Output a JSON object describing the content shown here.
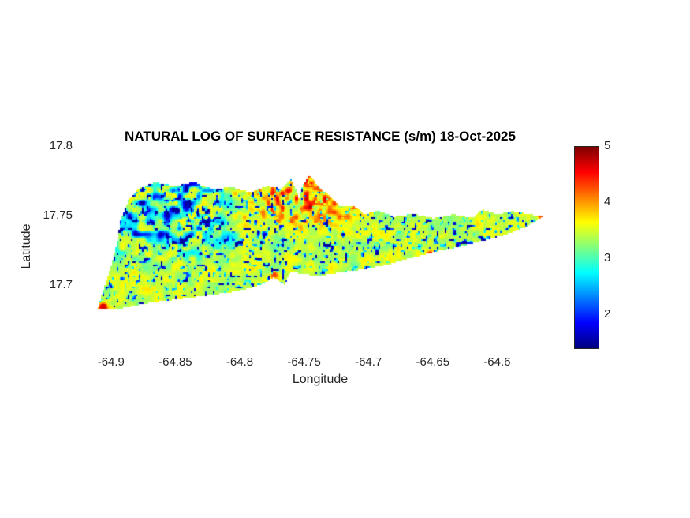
{
  "figure": {
    "background": "#ffffff"
  },
  "chart_data": {
    "type": "heatmap",
    "title": "NATURAL LOG OF SURFACE RESISTANCE (s/m) 18-Oct-2025",
    "xlabel": "Longitude",
    "ylabel": "Latitude",
    "xlim": [
      -64.925,
      -64.55
    ],
    "ylim": [
      17.655,
      17.8
    ],
    "x_tick_values": [
      -64.9,
      -64.85,
      -64.8,
      -64.75,
      -64.7,
      -64.65,
      -64.6
    ],
    "x_tick_labels": [
      "-64.9",
      "-64.85",
      "-64.8",
      "-64.75",
      "-64.7",
      "-64.65",
      "-64.6"
    ],
    "y_tick_values": [
      17.8,
      17.75,
      17.7
    ],
    "y_tick_labels": [
      "17.8",
      "17.75",
      "17.7"
    ],
    "grid": false,
    "colorbar": {
      "colormap": "jet",
      "range": [
        1.4,
        5.0
      ],
      "tick_values": [
        2,
        3,
        4,
        5
      ],
      "tick_labels": [
        "2",
        "3",
        "4",
        "5"
      ],
      "position": "right"
    },
    "island_outline_lonlat": [
      [
        -64.9097,
        17.682
      ],
      [
        -64.906,
        17.696
      ],
      [
        -64.899,
        17.715
      ],
      [
        -64.8945,
        17.732
      ],
      [
        -64.8925,
        17.7455
      ],
      [
        -64.8865,
        17.76
      ],
      [
        -64.8785,
        17.769
      ],
      [
        -64.866,
        17.7735
      ],
      [
        -64.85,
        17.771
      ],
      [
        -64.835,
        17.7735
      ],
      [
        -64.821,
        17.769
      ],
      [
        -64.8055,
        17.77
      ],
      [
        -64.7915,
        17.7665
      ],
      [
        -64.778,
        17.7712
      ],
      [
        -64.767,
        17.7688
      ],
      [
        -64.7596,
        17.7758
      ],
      [
        -64.756,
        17.769
      ],
      [
        -64.754,
        17.7618
      ],
      [
        -64.7516,
        17.77
      ],
      [
        -64.7455,
        17.779
      ],
      [
        -64.738,
        17.77
      ],
      [
        -64.73,
        17.764
      ],
      [
        -64.7215,
        17.756
      ],
      [
        -64.7105,
        17.7565
      ],
      [
        -64.703,
        17.7505
      ],
      [
        -64.692,
        17.753
      ],
      [
        -64.68,
        17.749
      ],
      [
        -64.6645,
        17.7508
      ],
      [
        -64.649,
        17.7478
      ],
      [
        -64.634,
        17.7505
      ],
      [
        -64.6185,
        17.7482
      ],
      [
        -64.611,
        17.754
      ],
      [
        -64.6,
        17.7505
      ],
      [
        -64.588,
        17.7528
      ],
      [
        -64.5745,
        17.7505
      ],
      [
        -64.5635,
        17.7495
      ],
      [
        -64.577,
        17.7415
      ],
      [
        -64.594,
        17.7358
      ],
      [
        -64.6125,
        17.7312
      ],
      [
        -64.631,
        17.7268
      ],
      [
        -64.649,
        17.7232
      ],
      [
        -64.6675,
        17.7188
      ],
      [
        -64.686,
        17.7142
      ],
      [
        -64.7045,
        17.7108
      ],
      [
        -64.723,
        17.7085
      ],
      [
        -64.738,
        17.7062
      ],
      [
        -64.7505,
        17.7075
      ],
      [
        -64.7605,
        17.7092
      ],
      [
        -64.7645,
        17.6995
      ],
      [
        -64.773,
        17.7052
      ],
      [
        -64.784,
        17.6995
      ],
      [
        -64.8025,
        17.695
      ],
      [
        -64.821,
        17.6928
      ],
      [
        -64.839,
        17.6905
      ],
      [
        -64.8575,
        17.6882
      ],
      [
        -64.876,
        17.6858
      ],
      [
        -64.8945,
        17.6825
      ]
    ],
    "field": {
      "base": 3.45,
      "variation": 0.8,
      "speckle_threshold": 0.7,
      "speckle_strength": 10,
      "value_min": 1.5,
      "value_max": 4.85
    },
    "low_region_northwest": {
      "lon_max": -64.79,
      "lat_min": 17.71,
      "threshold": 0.38,
      "strength": 3.6
    },
    "high_band_north_center": {
      "lon_center": -64.755,
      "lon_sigma": 0.035,
      "lat_min": 17.735,
      "threshold": 0.3,
      "strength": 2.2
    },
    "hotspots": [
      {
        "lon": -64.906,
        "lat": 17.684,
        "radius_px": 5,
        "value": 4.7,
        "note": "southwest tip red spot"
      },
      {
        "lon": -64.773,
        "lat": 17.707,
        "radius_px": 4,
        "value": 4.3,
        "note": "lagoon west orange"
      },
      {
        "lon": -64.757,
        "lat": 17.706,
        "radius_px": 4,
        "value": 4.2,
        "note": "lagoon east orange"
      },
      {
        "lon": -64.768,
        "lat": 17.7,
        "radius_px": 3,
        "value": 2.0,
        "note": "lagoon blue spot"
      },
      {
        "lon": -64.762,
        "lat": 17.768,
        "radius_px": 4,
        "value": 4.5,
        "note": "salt river west orange"
      },
      {
        "lon": -64.748,
        "lat": 17.772,
        "radius_px": 3,
        "value": 4.3,
        "note": "salt river east orange"
      },
      {
        "lon": -64.652,
        "lat": 17.722,
        "radius_px": 4,
        "value": 4.4,
        "note": "south coast orange spot"
      },
      {
        "lon": -64.566,
        "lat": 17.7497,
        "radius_px": 3,
        "value": 4.3,
        "note": "east tip spot"
      }
    ]
  }
}
